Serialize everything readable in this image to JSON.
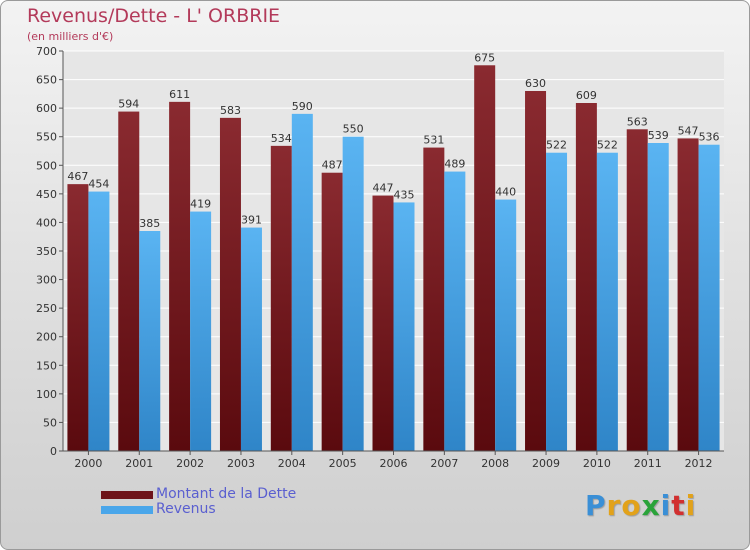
{
  "title": "Revenus/Dette - L' ORBRIE",
  "subtitle": "(en milliers d'€)",
  "legend": [
    {
      "label": "Montant de la Dette",
      "color": "#7d1a1f"
    },
    {
      "label": "Revenus",
      "color": "#4aa6ea"
    }
  ],
  "logo": {
    "letters": [
      "P",
      "r",
      "o",
      "x",
      "i",
      "t",
      "i"
    ],
    "colors": [
      "#3a8fd6",
      "#e2a21a",
      "#e2a21a",
      "#2aa33a",
      "#3a8fd6",
      "#d13030",
      "#e2a21a"
    ]
  },
  "chart_data": {
    "type": "bar",
    "categories": [
      "2000",
      "2001",
      "2002",
      "2003",
      "2004",
      "2005",
      "2006",
      "2007",
      "2008",
      "2009",
      "2010",
      "2011",
      "2012"
    ],
    "series": [
      {
        "name": "Montant de la Dette",
        "values": [
          467,
          594,
          611,
          583,
          534,
          487,
          447,
          531,
          675,
          630,
          609,
          563,
          547
        ],
        "color": "#7d1a1f"
      },
      {
        "name": "Revenus",
        "values": [
          454,
          385,
          419,
          391,
          590,
          550,
          435,
          489,
          440,
          522,
          522,
          539,
          536
        ],
        "color": "#4aa6ea"
      }
    ],
    "ylim": [
      0,
      700
    ],
    "yticks": [
      0,
      50,
      100,
      150,
      200,
      250,
      300,
      350,
      400,
      450,
      500,
      550,
      600,
      650,
      700
    ],
    "grid": true
  }
}
